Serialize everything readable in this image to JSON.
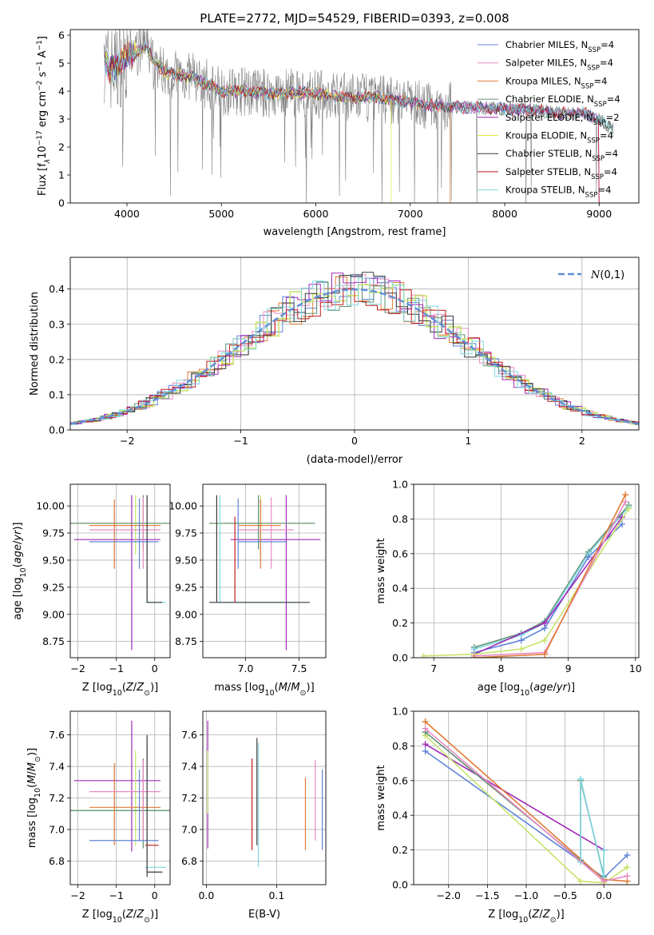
{
  "chart_data": [
    {
      "id": "spectrum",
      "type": "line",
      "title": "PLATE=2772, MJD=54529, FIBERID=0393, z=0.008",
      "xlabel": "wavelength [Angstrom, rest frame]",
      "ylabel_parts": [
        "Flux [f",
        "λ",
        "10",
        "−17",
        " erg cm",
        "−2",
        " s",
        "−1",
        " A",
        "−1",
        "]"
      ],
      "xlim": [
        3400,
        9420
      ],
      "ylim": [
        0,
        6.2
      ],
      "xticks": [
        4000,
        5000,
        6000,
        7000,
        8000,
        9000
      ],
      "yticks": [
        0,
        1,
        2,
        3,
        4,
        5,
        6
      ],
      "grid": false,
      "legend_position": "top-right",
      "data_series": {
        "name": "",
        "color": "#808080"
      },
      "anchors": [
        [
          3760,
          5.2
        ],
        [
          3800,
          4.8
        ],
        [
          3900,
          4.9
        ],
        [
          4000,
          5.3
        ],
        [
          4100,
          5.4
        ],
        [
          4200,
          5.6
        ],
        [
          4300,
          5.0
        ],
        [
          4400,
          4.7
        ],
        [
          4500,
          4.6
        ],
        [
          4600,
          4.55
        ],
        [
          4700,
          4.5
        ],
        [
          4800,
          4.3
        ],
        [
          4900,
          4.2
        ],
        [
          5000,
          4.0
        ],
        [
          5200,
          4.0
        ],
        [
          5400,
          3.95
        ],
        [
          5600,
          3.9
        ],
        [
          5800,
          3.95
        ],
        [
          6000,
          3.9
        ],
        [
          6200,
          3.8
        ],
        [
          6400,
          3.75
        ],
        [
          6600,
          3.8
        ],
        [
          6800,
          3.7
        ],
        [
          7000,
          3.6
        ],
        [
          7200,
          3.5
        ],
        [
          7400,
          3.45
        ],
        [
          7600,
          3.4
        ],
        [
          7800,
          3.4
        ],
        [
          8000,
          3.35
        ],
        [
          8200,
          3.35
        ],
        [
          8400,
          3.3
        ],
        [
          8600,
          3.2
        ],
        [
          8800,
          3.25
        ],
        [
          9000,
          3.0
        ],
        [
          9150,
          2.6
        ]
      ],
      "legend": [
        {
          "label": "Chabrier MILES, N",
          "sub": "SSP",
          "suffix": "=4",
          "color": "#5f84d8"
        },
        {
          "label": "Salpeter MILES, N",
          "sub": "SSP",
          "suffix": "=4",
          "color": "#e88ac2"
        },
        {
          "label": "Kroupa MILES, N",
          "sub": "SSP",
          "suffix": "=4",
          "color": "#e07a34"
        },
        {
          "label": "Chabrier ELODIE, N",
          "sub": "SSP",
          "suffix": "=4",
          "color": "#5f8f72"
        },
        {
          "label": "Salpeter ELODIE, N",
          "sub": "SSP",
          "suffix": "=2",
          "color": "#a029b8"
        },
        {
          "label": "Kroupa ELODIE, N",
          "sub": "SSP",
          "suffix": "=4",
          "color": "#e1ea3a"
        },
        {
          "label": "Chabrier STELIB, N",
          "sub": "SSP",
          "suffix": "=4",
          "color": "#3a3a3a"
        },
        {
          "label": "Salpeter STELIB, N",
          "sub": "SSP",
          "suffix": "=4",
          "color": "#c21a1a"
        },
        {
          "label": "Kroupa STELIB, N",
          "sub": "SSP",
          "suffix": "=4",
          "color": "#7fd6e0"
        }
      ]
    },
    {
      "id": "residual-hist",
      "type": "line",
      "xlabel": "(data-model)/error",
      "ylabel": "Normed distribution",
      "xlim": [
        -2.5,
        2.5
      ],
      "ylim": [
        0,
        0.49
      ],
      "xticks": [
        -2,
        -1,
        0,
        1,
        2
      ],
      "yticks": [
        0.0,
        0.1,
        0.2,
        0.3,
        0.4
      ],
      "grid": true,
      "legend_position": "top-right",
      "gauss": {
        "label": "N(0,1)",
        "color": "#5f8fd8"
      },
      "hist_colors": [
        "#5f84d8",
        "#e88ac2",
        "#e07a34",
        "#5f8f72",
        "#a029b8",
        "#c7e46a",
        "#3a3a3a",
        "#c21a1a",
        "#7fd6e0"
      ]
    },
    {
      "id": "age-vs-z",
      "type": "scatter",
      "xlabel": "Z [log10(Z/Z⊙)]",
      "ylabel": "age  [log10(age/yr)]",
      "xlim": [
        -2.2,
        0.4
      ],
      "ylim": [
        8.6,
        10.2
      ],
      "xticks": [
        -2,
        -1,
        0
      ],
      "yticks": [
        8.75,
        9.0,
        9.25,
        9.5,
        9.75,
        10.0
      ],
      "grid": true,
      "crosses": [
        {
          "x": -0.6,
          "y": 9.69,
          "x0": -2.1,
          "x1": 0.15,
          "y0": 8.67,
          "y1": 10.1,
          "color": "#a029b8"
        },
        {
          "x": -0.5,
          "y": 9.84,
          "x0": -2.2,
          "x1": 0.4,
          "y0": 9.55,
          "y1": 10.1,
          "color": "#c7e46a"
        },
        {
          "x": -0.3,
          "y": 9.84,
          "x0": -2.2,
          "x1": 0.4,
          "y0": 9.6,
          "y1": 10.1,
          "color": "#5f8f72"
        },
        {
          "x": -1.05,
          "y": 9.82,
          "x0": -1.7,
          "x1": 0.15,
          "y0": 9.42,
          "y1": 10.06,
          "color": "#e07a34"
        },
        {
          "x": -0.3,
          "y": 9.78,
          "x0": -1.7,
          "x1": 0.15,
          "y0": 9.42,
          "y1": 10.08,
          "color": "#e88ac2"
        },
        {
          "x": -0.4,
          "y": 9.67,
          "x0": -1.7,
          "x1": 0.1,
          "y0": 9.42,
          "y1": 10.07,
          "color": "#5f84d8"
        },
        {
          "x": -0.2,
          "y": 9.11,
          "x0": -0.25,
          "x1": 0.3,
          "y0": 9.11,
          "y1": 10.1,
          "color": "#7fd6e0"
        },
        {
          "x": -0.2,
          "y": 9.11,
          "x0": -0.2,
          "x1": 0.2,
          "y0": 9.11,
          "y1": 10.1,
          "color": "#3a3a3a"
        }
      ]
    },
    {
      "id": "age-vs-mass",
      "type": "scatter",
      "xlabel": "mass [log10(M/M⊙)]",
      "ylabel": "",
      "xlim": [
        6.6,
        7.75
      ],
      "ylim": [
        8.6,
        10.2
      ],
      "xticks": [
        7.0,
        7.5
      ],
      "yticks": [
        8.75,
        9.0,
        9.25,
        9.5,
        9.75,
        10.0
      ],
      "grid": true,
      "crosses": [
        {
          "x": 7.38,
          "y": 9.69,
          "x0": 6.86,
          "x1": 7.7,
          "y0": 8.67,
          "y1": 10.1,
          "color": "#a029b8"
        },
        {
          "x": 7.14,
          "y": 9.84,
          "x0": 6.66,
          "x1": 7.65,
          "y0": 9.55,
          "y1": 10.1,
          "color": "#c7e46a"
        },
        {
          "x": 7.12,
          "y": 9.84,
          "x0": 6.66,
          "x1": 7.65,
          "y0": 9.6,
          "y1": 10.1,
          "color": "#5f8f72"
        },
        {
          "x": 7.14,
          "y": 9.82,
          "x0": 6.93,
          "x1": 7.33,
          "y0": 9.42,
          "y1": 10.06,
          "color": "#e07a34"
        },
        {
          "x": 7.24,
          "y": 9.78,
          "x0": 6.93,
          "x1": 7.45,
          "y0": 9.42,
          "y1": 10.08,
          "color": "#e88ac2"
        },
        {
          "x": 6.93,
          "y": 9.67,
          "x0": 6.93,
          "x1": 7.38,
          "y0": 9.42,
          "y1": 10.07,
          "color": "#5f84d8"
        },
        {
          "x": 6.76,
          "y": 9.11,
          "x0": 6.73,
          "x1": 7.5,
          "y0": 9.11,
          "y1": 10.1,
          "color": "#7fd6e0"
        },
        {
          "x": 6.73,
          "y": 9.11,
          "x0": 6.66,
          "x1": 7.6,
          "y0": 9.11,
          "y1": 10.1,
          "color": "#3a3a3a"
        },
        {
          "x": 6.9,
          "y": 9.11,
          "x0": 6.9,
          "x1": 6.9,
          "y0": 9.11,
          "y1": 9.9,
          "color": "#c21a1a"
        }
      ]
    },
    {
      "id": "weight-vs-age",
      "type": "line",
      "xlabel": "age  [log10(age/yr)]",
      "ylabel": "mass weight",
      "xlim": [
        6.7,
        10.05
      ],
      "ylim": [
        0,
        1.0
      ],
      "xticks": [
        7,
        8,
        9,
        10
      ],
      "yticks": [
        0.0,
        0.2,
        0.4,
        0.6,
        0.8,
        1.0
      ],
      "grid": true,
      "series": [
        {
          "color": "#5f8f72",
          "x": [
            7.6,
            8.3,
            8.65,
            9.3,
            9.9
          ],
          "y": [
            0.06,
            0.14,
            0.21,
            0.61,
            0.88
          ]
        },
        {
          "color": "#7fd6e0",
          "x": [
            7.6,
            8.3,
            8.65,
            9.3,
            9.9
          ],
          "y": [
            0.05,
            0.13,
            0.2,
            0.6,
            0.87
          ]
        },
        {
          "color": "#5f84d8",
          "x": [
            7.6,
            8.3,
            8.65,
            9.3,
            9.8
          ],
          "y": [
            0.03,
            0.1,
            0.17,
            0.58,
            0.77
          ]
        },
        {
          "color": "#a029b8",
          "x": [
            7.6,
            8.65,
            9.8
          ],
          "y": [
            0.02,
            0.2,
            0.81
          ]
        },
        {
          "color": "#c7e46a",
          "x": [
            6.85,
            7.6,
            8.3,
            8.65,
            9.9
          ],
          "y": [
            0.01,
            0.02,
            0.05,
            0.1,
            0.86
          ]
        },
        {
          "color": "#e88ac2",
          "x": [
            7.6,
            8.65,
            9.85
          ],
          "y": [
            0.01,
            0.03,
            0.9
          ]
        },
        {
          "color": "#e07a34",
          "x": [
            7.6,
            8.65,
            9.85
          ],
          "y": [
            0.0,
            0.02,
            0.94
          ]
        }
      ]
    },
    {
      "id": "mass-vs-z",
      "type": "scatter",
      "xlabel": "Z [log10(Z/Z⊙)]",
      "ylabel": "mass [log10(M/M⊙)]",
      "xlim": [
        -2.2,
        0.4
      ],
      "ylim": [
        6.65,
        7.75
      ],
      "xticks": [
        -2,
        -1,
        0
      ],
      "yticks": [
        6.8,
        7.0,
        7.2,
        7.4,
        7.6
      ],
      "grid": true,
      "crosses": [
        {
          "x": -0.6,
          "y": 7.31,
          "x0": -2.1,
          "x1": 0.15,
          "y0": 6.86,
          "y1": 7.69,
          "color": "#a029b8"
        },
        {
          "x": -0.5,
          "y": 7.12,
          "x0": -2.2,
          "x1": 0.4,
          "y0": 6.9,
          "y1": 7.5,
          "color": "#c7e46a"
        },
        {
          "x": -0.3,
          "y": 7.12,
          "x0": -2.2,
          "x1": 0.4,
          "y0": 6.88,
          "y1": 7.45,
          "color": "#5f8f72"
        },
        {
          "x": -1.05,
          "y": 7.14,
          "x0": -1.7,
          "x1": 0.15,
          "y0": 6.9,
          "y1": 7.42,
          "color": "#e07a34"
        },
        {
          "x": -0.3,
          "y": 7.24,
          "x0": -1.7,
          "x1": 0.15,
          "y0": 6.93,
          "y1": 7.44,
          "color": "#e88ac2"
        },
        {
          "x": -0.4,
          "y": 6.93,
          "x0": -1.7,
          "x1": 0.1,
          "y0": 6.93,
          "y1": 7.38,
          "color": "#5f84d8"
        },
        {
          "x": -0.2,
          "y": 6.76,
          "x0": -0.25,
          "x1": 0.3,
          "y0": 6.7,
          "y1": 7.55,
          "color": "#7fd6e0"
        },
        {
          "x": -0.2,
          "y": 6.73,
          "x0": -0.2,
          "x1": 0.2,
          "y0": 6.7,
          "y1": 7.6,
          "color": "#3a3a3a"
        },
        {
          "x": -0.05,
          "y": 6.9,
          "x0": -0.25,
          "x1": 0.1,
          "y0": 6.9,
          "y1": 6.9,
          "color": "#c21a1a"
        }
      ]
    },
    {
      "id": "mass-vs-ebv",
      "type": "scatter",
      "xlabel": "E(B-V)",
      "ylabel": "",
      "xlim": [
        -0.005,
        0.17
      ],
      "ylim": [
        6.65,
        7.75
      ],
      "xticks": [
        0.0,
        0.1
      ],
      "yticks": [
        6.8,
        7.0,
        7.2,
        7.4,
        7.6
      ],
      "grid": true,
      "vlines": [
        {
          "x": 0.002,
          "y0": 6.88,
          "y1": 7.69,
          "color": "#a029b8"
        },
        {
          "x": 0.002,
          "y0": 7.1,
          "y1": 7.5,
          "color": "#c7e46a"
        },
        {
          "x": 0.065,
          "y0": 6.87,
          "y1": 7.45,
          "color": "#c21a1a"
        },
        {
          "x": 0.072,
          "y0": 6.9,
          "y1": 7.58,
          "color": "#3a3a3a"
        },
        {
          "x": 0.074,
          "y0": 6.76,
          "y1": 7.55,
          "color": "#7fd6e0"
        },
        {
          "x": 0.141,
          "y0": 6.87,
          "y1": 7.33,
          "color": "#e07a34"
        },
        {
          "x": 0.155,
          "y0": 6.93,
          "y1": 7.44,
          "color": "#e88ac2"
        },
        {
          "x": 0.165,
          "y0": 6.87,
          "y1": 7.38,
          "color": "#5f84d8"
        }
      ]
    },
    {
      "id": "weight-vs-z",
      "type": "line",
      "xlabel": "Z [log10(Z/Z⊙)]",
      "ylabel": "mass weight",
      "xlim": [
        -2.45,
        0.45
      ],
      "ylim": [
        0,
        1.0
      ],
      "xticks": [
        -2.0,
        -1.5,
        -1.0,
        -0.5,
        0.0
      ],
      "yticks": [
        0.0,
        0.2,
        0.4,
        0.6,
        0.8,
        1.0
      ],
      "grid": true,
      "series": [
        {
          "color": "#5f84d8",
          "x": [
            -2.3,
            0.0,
            0.3
          ],
          "y": [
            0.77,
            0.04,
            0.17
          ]
        },
        {
          "color": "#a029b8",
          "x": [
            -2.3,
            0.0
          ],
          "y": [
            0.81,
            0.2
          ]
        },
        {
          "color": "#e07a34",
          "x": [
            -2.3,
            0.0,
            0.3
          ],
          "y": [
            0.94,
            0.03,
            0.02
          ]
        },
        {
          "color": "#c7e46a",
          "x": [
            -2.3,
            -0.3,
            0.0,
            0.3
          ],
          "y": [
            0.86,
            0.02,
            0.01,
            0.1
          ]
        },
        {
          "color": "#5f8f72",
          "x": [
            -2.3,
            -0.3,
            -0.3,
            0.0,
            0.0
          ],
          "y": [
            0.88,
            0.14,
            0.6,
            0.05,
            0.2
          ]
        },
        {
          "color": "#7fd6e0",
          "x": [
            -0.3,
            -0.3,
            0.0,
            0.0
          ],
          "y": [
            0.13,
            0.61,
            0.04,
            0.2
          ]
        },
        {
          "color": "#e88ac2",
          "x": [
            -2.3,
            0.0,
            0.3
          ],
          "y": [
            0.9,
            0.02,
            0.05
          ]
        }
      ]
    }
  ]
}
